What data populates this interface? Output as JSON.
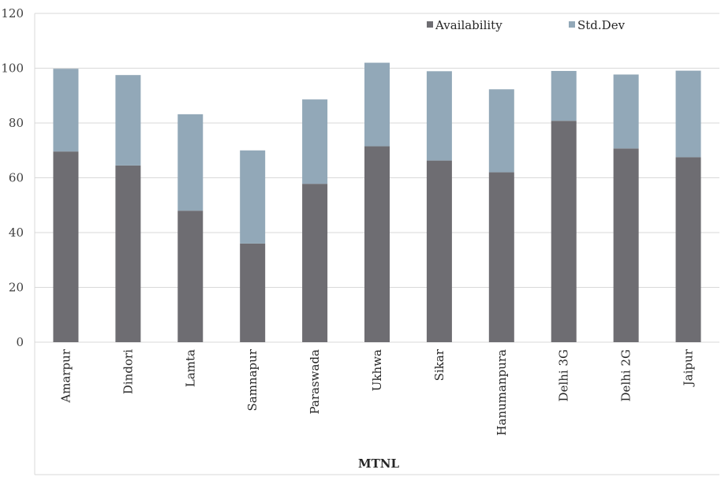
{
  "chart_data": {
    "type": "bar",
    "stacked": true,
    "categories": [
      "Amarpur",
      "Dindori",
      "Lamta",
      "Samnapur",
      "Paraswada",
      "Ukhwa",
      "Sikar",
      "Hanumanpura",
      "Delhi 3G",
      "Delhi 2G",
      "Jaipur"
    ],
    "series": [
      {
        "name": "Availability",
        "color": "#6e6d72",
        "values": [
          69.6,
          64.5,
          48,
          36,
          57.8,
          71.5,
          66.3,
          62,
          80.8,
          70.7,
          67.5
        ]
      },
      {
        "name": "Std.Dev",
        "color": "#92a8b8",
        "values": [
          30.2,
          33,
          35.2,
          34,
          30.8,
          30.5,
          32.6,
          30.3,
          18.2,
          27,
          31.6
        ]
      }
    ],
    "xlabel": "MTNL",
    "ylabel": "",
    "ylim": [
      0,
      120
    ],
    "yticks": [
      0,
      20,
      40,
      60,
      80,
      100,
      120
    ],
    "grid": true,
    "legend": "top-right"
  }
}
